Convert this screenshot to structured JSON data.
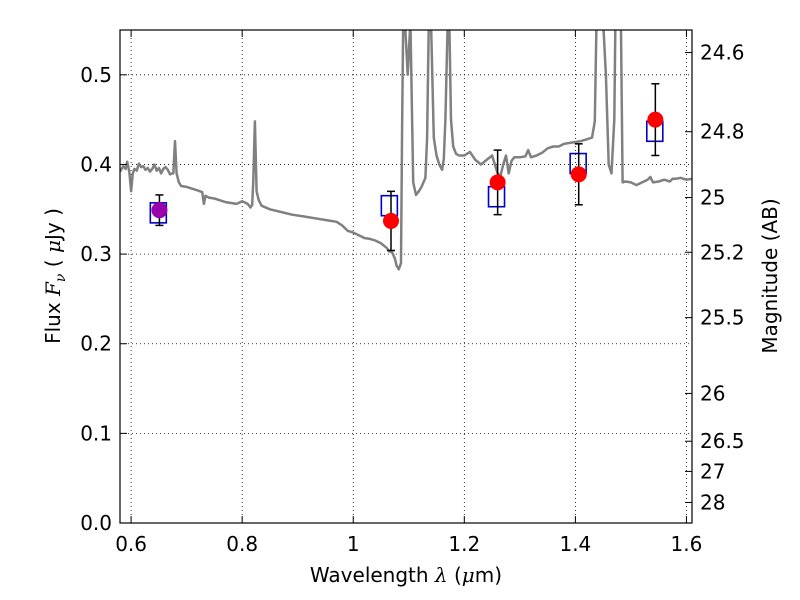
{
  "chart_data": {
    "type": "scatter",
    "xlabel": {
      "prefix": "Wavelength  ",
      "symbol": "λ",
      "unit_open": " (",
      "unit_mu": "μ",
      "unit_rest": "m)"
    },
    "ylabel": {
      "prefix": "Flux  ",
      "symbol": "F",
      "subscript": "ν",
      "unit_open": "  ( ",
      "unit_mu": "μ",
      "unit_rest": "Jy )"
    },
    "y2label": "Magnitude (AB)",
    "xlim": [
      0.58,
      1.61
    ],
    "ylim": [
      0.0,
      0.55
    ],
    "grid": true,
    "x_ticks": [
      {
        "value": 0.6,
        "label": "0.6"
      },
      {
        "value": 0.8,
        "label": "0.8"
      },
      {
        "value": 1.0,
        "label": "1"
      },
      {
        "value": 1.2,
        "label": "1.2"
      },
      {
        "value": 1.4,
        "label": "1.4"
      },
      {
        "value": 1.6,
        "label": "1.6"
      }
    ],
    "y_ticks": [
      {
        "value": 0.0,
        "label": "0.0"
      },
      {
        "value": 0.1,
        "label": "0.1"
      },
      {
        "value": 0.2,
        "label": "0.2"
      },
      {
        "value": 0.3,
        "label": "0.3"
      },
      {
        "value": 0.4,
        "label": "0.4"
      },
      {
        "value": 0.5,
        "label": "0.5"
      }
    ],
    "y2_ticks": [
      {
        "mag": 24.6,
        "label": "24.6"
      },
      {
        "mag": 24.8,
        "label": "24.8"
      },
      {
        "mag": 25.0,
        "label": "25"
      },
      {
        "mag": 25.2,
        "label": "25.2"
      },
      {
        "mag": 25.5,
        "label": "25.5"
      },
      {
        "mag": 26.0,
        "label": "26"
      },
      {
        "mag": 26.5,
        "label": "26.5"
      },
      {
        "mag": 27.0,
        "label": "27"
      },
      {
        "mag": 28.0,
        "label": "28"
      }
    ],
    "series": [
      {
        "type": "line",
        "color": "#808080",
        "points": [
          [
            0.58,
            0.392
          ],
          [
            0.586,
            0.398
          ],
          [
            0.59,
            0.395
          ],
          [
            0.593,
            0.403
          ],
          [
            0.597,
            0.391
          ],
          [
            0.6,
            0.37
          ],
          [
            0.603,
            0.39
          ],
          [
            0.606,
            0.395
          ],
          [
            0.61,
            0.393
          ],
          [
            0.614,
            0.401
          ],
          [
            0.618,
            0.397
          ],
          [
            0.622,
            0.398
          ],
          [
            0.626,
            0.394
          ],
          [
            0.63,
            0.396
          ],
          [
            0.634,
            0.392
          ],
          [
            0.638,
            0.395
          ],
          [
            0.642,
            0.4
          ],
          [
            0.646,
            0.393
          ],
          [
            0.65,
            0.396
          ],
          [
            0.654,
            0.39
          ],
          [
            0.658,
            0.395
          ],
          [
            0.662,
            0.397
          ],
          [
            0.666,
            0.394
          ],
          [
            0.67,
            0.389
          ],
          [
            0.674,
            0.39
          ],
          [
            0.676,
            0.39
          ],
          [
            0.679,
            0.426
          ],
          [
            0.682,
            0.39
          ],
          [
            0.686,
            0.38
          ],
          [
            0.69,
            0.376
          ],
          [
            0.7,
            0.375
          ],
          [
            0.71,
            0.373
          ],
          [
            0.72,
            0.371
          ],
          [
            0.728,
            0.369
          ],
          [
            0.731,
            0.356
          ],
          [
            0.734,
            0.365
          ],
          [
            0.74,
            0.363
          ],
          [
            0.75,
            0.362
          ],
          [
            0.76,
            0.36
          ],
          [
            0.77,
            0.358
          ],
          [
            0.78,
            0.357
          ],
          [
            0.79,
            0.356
          ],
          [
            0.8,
            0.359
          ],
          [
            0.81,
            0.356
          ],
          [
            0.815,
            0.352
          ],
          [
            0.818,
            0.355
          ],
          [
            0.82,
            0.382
          ],
          [
            0.823,
            0.448
          ],
          [
            0.826,
            0.37
          ],
          [
            0.83,
            0.36
          ],
          [
            0.835,
            0.354
          ],
          [
            0.85,
            0.35
          ],
          [
            0.87,
            0.347
          ],
          [
            0.89,
            0.344
          ],
          [
            0.91,
            0.342
          ],
          [
            0.93,
            0.34
          ],
          [
            0.95,
            0.338
          ],
          [
            0.97,
            0.336
          ],
          [
            0.98,
            0.332
          ],
          [
            0.99,
            0.326
          ],
          [
            1.0,
            0.324
          ],
          [
            1.01,
            0.321
          ],
          [
            1.02,
            0.318
          ],
          [
            1.03,
            0.317
          ],
          [
            1.04,
            0.315
          ],
          [
            1.05,
            0.312
          ],
          [
            1.06,
            0.307
          ],
          [
            1.065,
            0.303
          ],
          [
            1.07,
            0.302
          ],
          [
            1.075,
            0.295
          ],
          [
            1.078,
            0.287
          ],
          [
            1.082,
            0.283
          ],
          [
            1.086,
            0.29
          ],
          [
            1.088,
            0.44
          ],
          [
            1.09,
            0.56
          ],
          [
            1.093,
            0.56
          ],
          [
            1.098,
            0.5
          ],
          [
            1.103,
            0.56
          ],
          [
            1.108,
            0.38
          ],
          [
            1.113,
            0.366
          ],
          [
            1.118,
            0.37
          ],
          [
            1.123,
            0.375
          ],
          [
            1.13,
            0.385
          ],
          [
            1.133,
            0.43
          ],
          [
            1.136,
            0.56
          ],
          [
            1.14,
            0.56
          ],
          [
            1.145,
            0.43
          ],
          [
            1.15,
            0.41
          ],
          [
            1.155,
            0.4
          ],
          [
            1.16,
            0.394
          ],
          [
            1.163,
            0.406
          ],
          [
            1.166,
            0.45
          ],
          [
            1.17,
            0.56
          ],
          [
            1.173,
            0.56
          ],
          [
            1.176,
            0.45
          ],
          [
            1.18,
            0.42
          ],
          [
            1.185,
            0.412
          ],
          [
            1.19,
            0.41
          ],
          [
            1.2,
            0.41
          ],
          [
            1.21,
            0.414
          ],
          [
            1.22,
            0.405
          ],
          [
            1.23,
            0.4
          ],
          [
            1.24,
            0.405
          ],
          [
            1.25,
            0.41
          ],
          [
            1.26,
            0.39
          ],
          [
            1.265,
            0.387
          ],
          [
            1.27,
            0.4
          ],
          [
            1.275,
            0.41
          ],
          [
            1.28,
            0.39
          ],
          [
            1.285,
            0.404
          ],
          [
            1.29,
            0.408
          ],
          [
            1.3,
            0.408
          ],
          [
            1.31,
            0.409
          ],
          [
            1.315,
            0.416
          ],
          [
            1.32,
            0.408
          ],
          [
            1.33,
            0.41
          ],
          [
            1.34,
            0.413
          ],
          [
            1.35,
            0.418
          ],
          [
            1.36,
            0.42
          ],
          [
            1.37,
            0.42
          ],
          [
            1.38,
            0.423
          ],
          [
            1.39,
            0.424
          ],
          [
            1.4,
            0.425
          ],
          [
            1.41,
            0.426
          ],
          [
            1.42,
            0.428
          ],
          [
            1.43,
            0.43
          ],
          [
            1.435,
            0.448
          ],
          [
            1.438,
            0.56
          ],
          [
            1.45,
            0.56
          ],
          [
            1.455,
            0.5
          ],
          [
            1.46,
            0.4
          ],
          [
            1.465,
            0.39
          ],
          [
            1.47,
            0.45
          ],
          [
            1.472,
            0.56
          ],
          [
            1.482,
            0.56
          ],
          [
            1.485,
            0.38
          ],
          [
            1.49,
            0.381
          ],
          [
            1.5,
            0.38
          ],
          [
            1.51,
            0.377
          ],
          [
            1.52,
            0.38
          ],
          [
            1.53,
            0.383
          ],
          [
            1.535,
            0.386
          ],
          [
            1.54,
            0.38
          ],
          [
            1.55,
            0.381
          ],
          [
            1.56,
            0.383
          ],
          [
            1.57,
            0.381
          ],
          [
            1.575,
            0.384
          ],
          [
            1.58,
            0.384
          ],
          [
            1.59,
            0.385
          ],
          [
            1.6,
            0.383
          ],
          [
            1.61,
            0.384
          ]
        ]
      },
      {
        "type": "scatter",
        "marker": "square-open",
        "color": "#0000cc",
        "points": [
          {
            "x": 0.649,
            "y": 0.346
          },
          {
            "x": 1.065,
            "y": 0.354
          },
          {
            "x": 1.258,
            "y": 0.364
          },
          {
            "x": 1.405,
            "y": 0.401
          },
          {
            "x": 1.543,
            "y": 0.437
          }
        ]
      },
      {
        "type": "scatter",
        "marker": "circle",
        "color": "#ff0000",
        "points": [
          {
            "x": 0.651,
            "y": 0.349,
            "err": 0.017,
            "color": "#9900aa"
          },
          {
            "x": 1.068,
            "y": 0.337,
            "err": 0.033
          },
          {
            "x": 1.26,
            "y": 0.38,
            "err": 0.036
          },
          {
            "x": 1.406,
            "y": 0.389,
            "err": 0.034
          },
          {
            "x": 1.544,
            "y": 0.45,
            "err": 0.04
          }
        ]
      }
    ]
  }
}
